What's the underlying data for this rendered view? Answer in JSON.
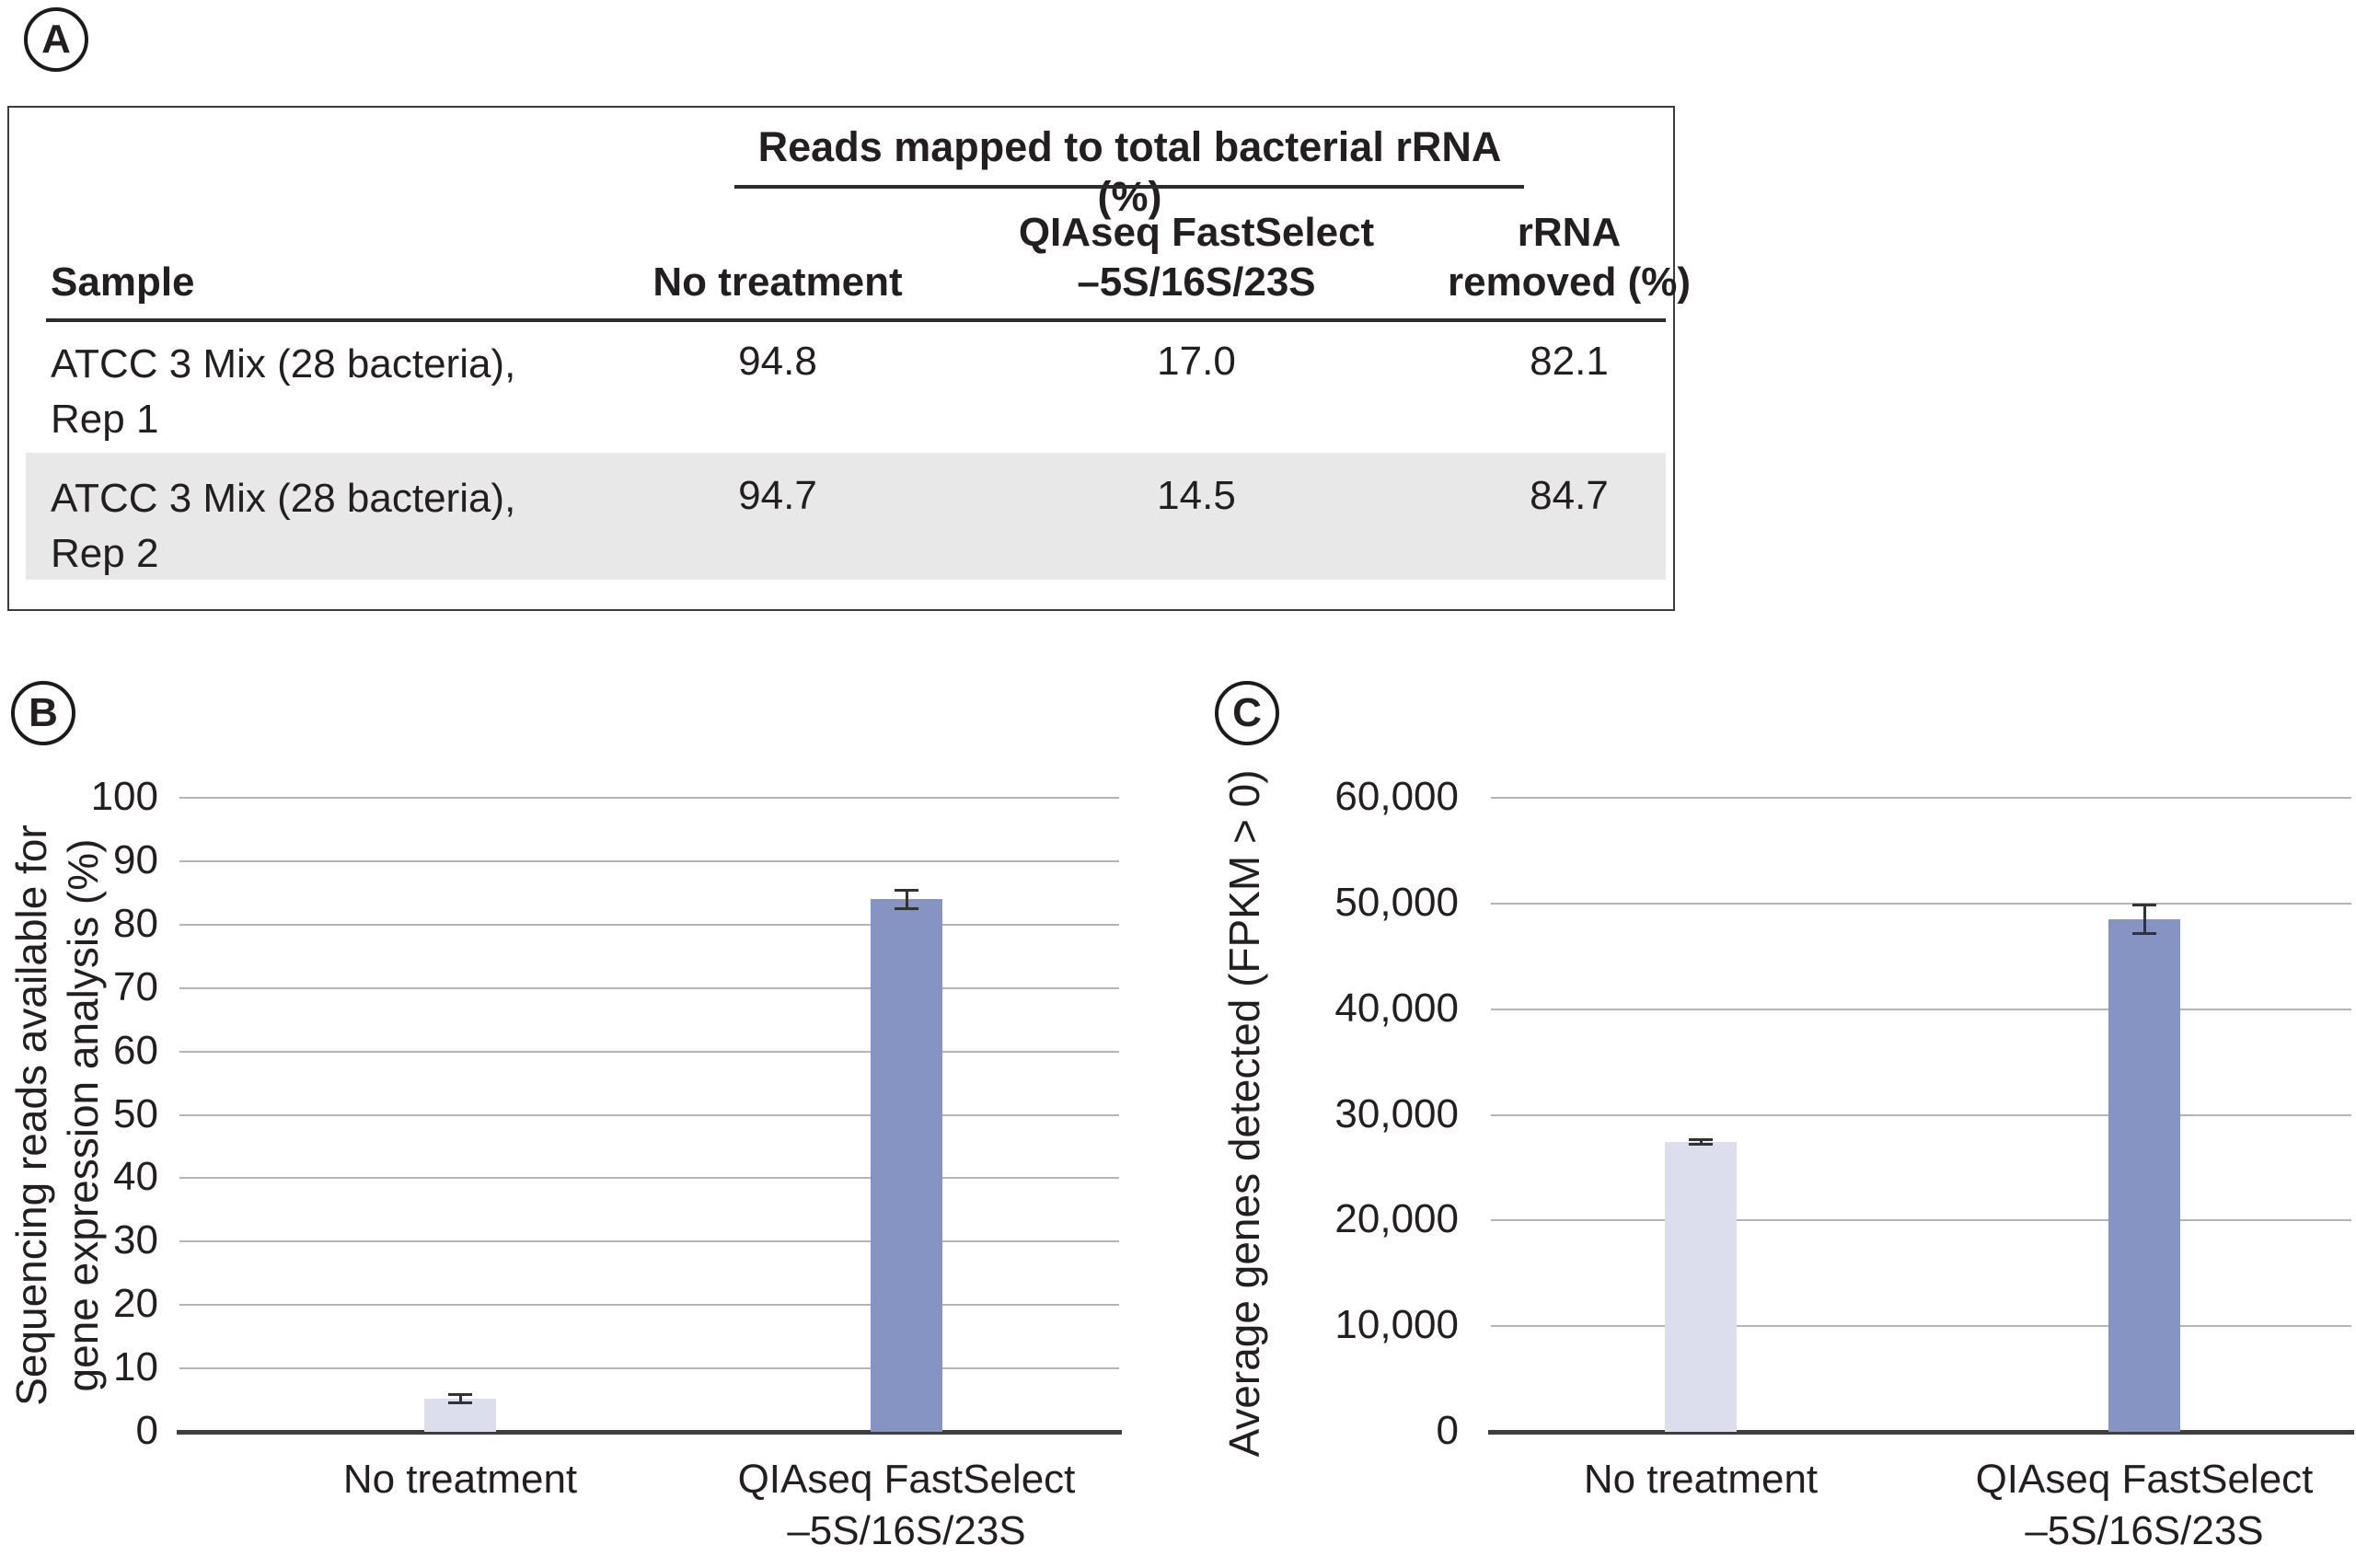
{
  "panels": {
    "a": "A",
    "b": "B",
    "c": "C"
  },
  "colors": {
    "bar_light": "#dcdeed",
    "bar_dark": "#8694c4",
    "alt_row": "#e8e8e8",
    "gridline": "#b4b4b4",
    "axis": "#3f3f3f",
    "text": "#231f20"
  },
  "table": {
    "spanning_header": "Reads mapped to total bacterial rRNA (%)",
    "columns": [
      "Sample",
      "No treatment",
      "QIAseq FastSelect\n–5S/16S/23S",
      "rRNA\nremoved (%)"
    ],
    "rows": [
      {
        "sample": "ATCC 3 Mix (28 bacteria),\nRep 1",
        "no_treatment": "94.8",
        "fastselect": "17.0",
        "rrna_removed": "82.1"
      },
      {
        "sample": "ATCC 3 Mix (28 bacteria),\nRep 2",
        "no_treatment": "94.7",
        "fastselect": "14.5",
        "rrna_removed": "84.7"
      }
    ]
  },
  "chart_data": [
    {
      "panel_label": "B",
      "type": "bar",
      "ylabel": "Sequencing reads available for\ngene expression analysis (%)",
      "categories": [
        "No treatment",
        "QIAseq FastSelect\n–5S/16S/23S"
      ],
      "values": [
        5.2,
        84
      ],
      "error_bars": [
        0.7,
        1.5
      ],
      "ylim": [
        0,
        100
      ],
      "ytick_values": [
        0,
        10,
        20,
        30,
        40,
        50,
        60,
        70,
        80,
        90,
        100
      ],
      "ytick_labels": [
        "0",
        "10",
        "20",
        "30",
        "40",
        "50",
        "60",
        "70",
        "80",
        "90",
        "100"
      ],
      "grid": true,
      "legend": "none",
      "bar_colors": [
        "#dcdeed",
        "#8694c4"
      ]
    },
    {
      "panel_label": "C",
      "type": "bar",
      "ylabel": "Average genes detected (FPKM > 0)",
      "categories": [
        "No treatment",
        "QIAseq FastSelect\n–5S/16S/23S"
      ],
      "values": [
        27400,
        48500
      ],
      "error_bars": [
        250,
        1400
      ],
      "ylim": [
        0,
        60000
      ],
      "ytick_values": [
        0,
        10000,
        20000,
        30000,
        40000,
        50000,
        60000
      ],
      "ytick_labels": [
        "0",
        "10,000",
        "20,000",
        "30,000",
        "40,000",
        "50,000",
        "60,000"
      ],
      "grid": true,
      "legend": "none",
      "bar_colors": [
        "#dcdeed",
        "#8694c4"
      ]
    }
  ]
}
